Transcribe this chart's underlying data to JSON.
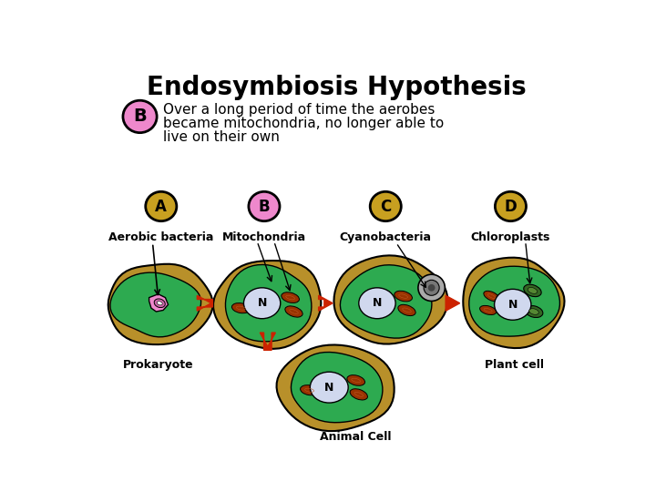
{
  "title": "Endosymbiosis Hypothesis",
  "title_fontsize": 20,
  "title_fontweight": "bold",
  "bg_color": "#ffffff",
  "legend_bubble_color": "#ee88cc",
  "legend_bubble_label": "B",
  "legend_text_line1": "Over a long period of time the aerobes",
  "legend_text_line2": "became mitochondria, no longer able to",
  "legend_text_line3": "live on their own",
  "step_letters": [
    "A",
    "B",
    "C",
    "D"
  ],
  "step_letter_colors": [
    "#c8a020",
    "#ee88cc",
    "#c8a020",
    "#c8a020"
  ],
  "step_texts": [
    "Aerobic bacteria",
    "Mitochondria",
    "Cyanobacteria",
    "Chloroplasts"
  ],
  "bottom_labels_left": "Prokaryote",
  "bottom_labels_mid": "Animal Cell",
  "bottom_labels_right": "Plant cell",
  "cell_outer_color": "#b8902a",
  "cell_green_color": "#2daa50",
  "cell_green_light": "#44cc70",
  "nucleus_color": "#d0d8ee",
  "mito_color": "#993300",
  "arrow_color": "#cc2200",
  "pink_color": "#ee88cc",
  "cyano_color": "#888888",
  "chloro_color": "#336622"
}
